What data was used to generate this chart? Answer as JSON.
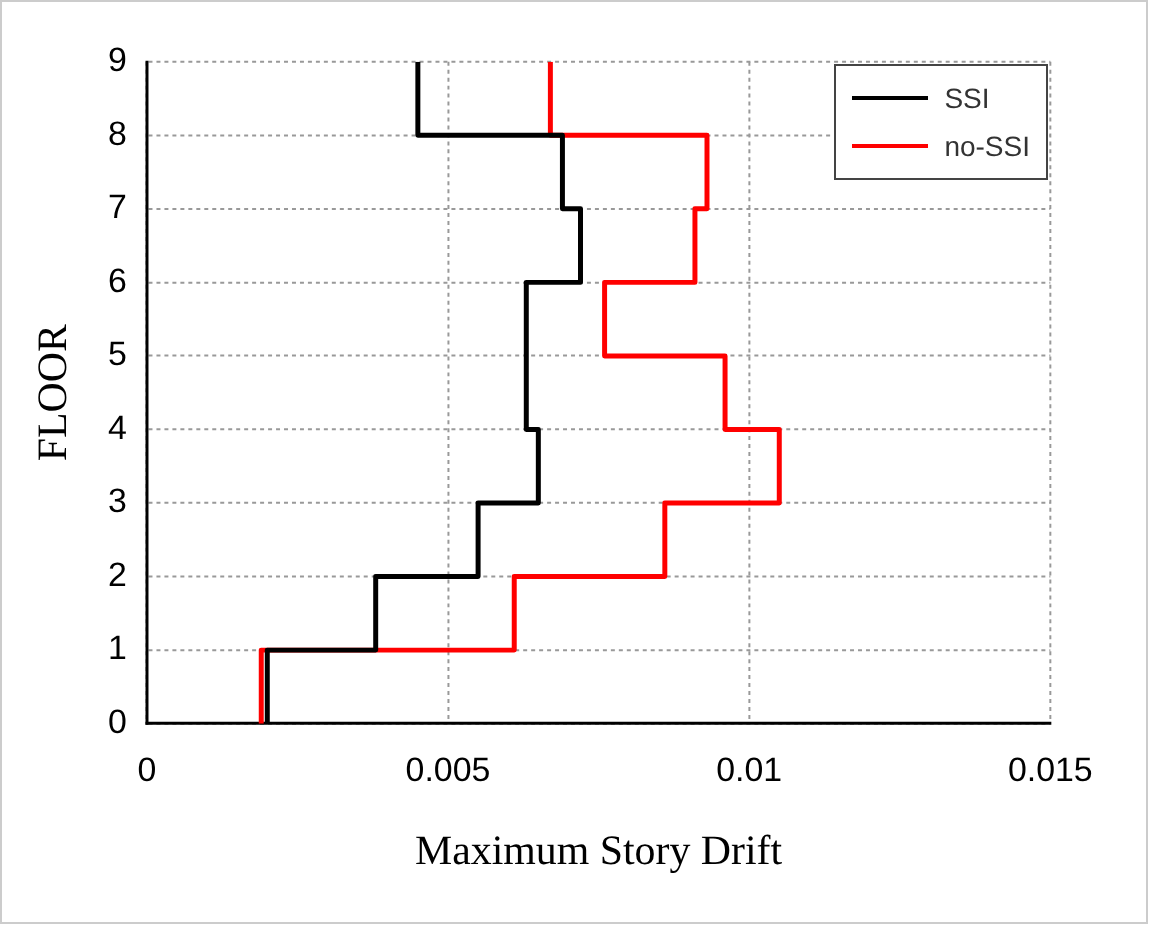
{
  "chart_data": {
    "type": "line",
    "xlabel": "Maximum Story Drift",
    "ylabel": "FLOOR",
    "xlim": [
      0,
      0.015
    ],
    "xticks": [
      0,
      0.005,
      0.01,
      0.015
    ],
    "ylim": [
      0,
      9
    ],
    "yticks": [
      0,
      1,
      2,
      3,
      4,
      5,
      6,
      7,
      8,
      9
    ],
    "grid": true,
    "legend": "top right",
    "marker": "none",
    "line_style": "solid",
    "series": [
      {
        "name": "SSI",
        "color": "#000000",
        "x": [
          0.002,
          0.002,
          0.0038,
          0.0038,
          0.0055,
          0.0055,
          0.0065,
          0.0065,
          0.0063,
          0.0063,
          0.0072,
          0.0072,
          0.0069,
          0.0069,
          0.0045,
          0.0045
        ],
        "values": [
          0,
          1,
          1,
          2,
          2,
          3,
          3,
          4,
          4,
          6,
          6,
          7,
          7,
          8,
          8,
          9
        ]
      },
      {
        "name": "no-SSI",
        "color": "#ff0000",
        "x": [
          0.0019,
          0.0019,
          0.0061,
          0.0061,
          0.0086,
          0.0086,
          0.0105,
          0.0105,
          0.0096,
          0.0096,
          0.0076,
          0.0076,
          0.0091,
          0.0091,
          0.0093,
          0.0093,
          0.0067,
          0.0067
        ],
        "values": [
          0,
          1,
          1,
          2,
          2,
          3,
          3,
          4,
          4,
          5,
          5,
          6,
          6,
          7,
          7,
          8,
          8,
          9
        ]
      }
    ]
  }
}
